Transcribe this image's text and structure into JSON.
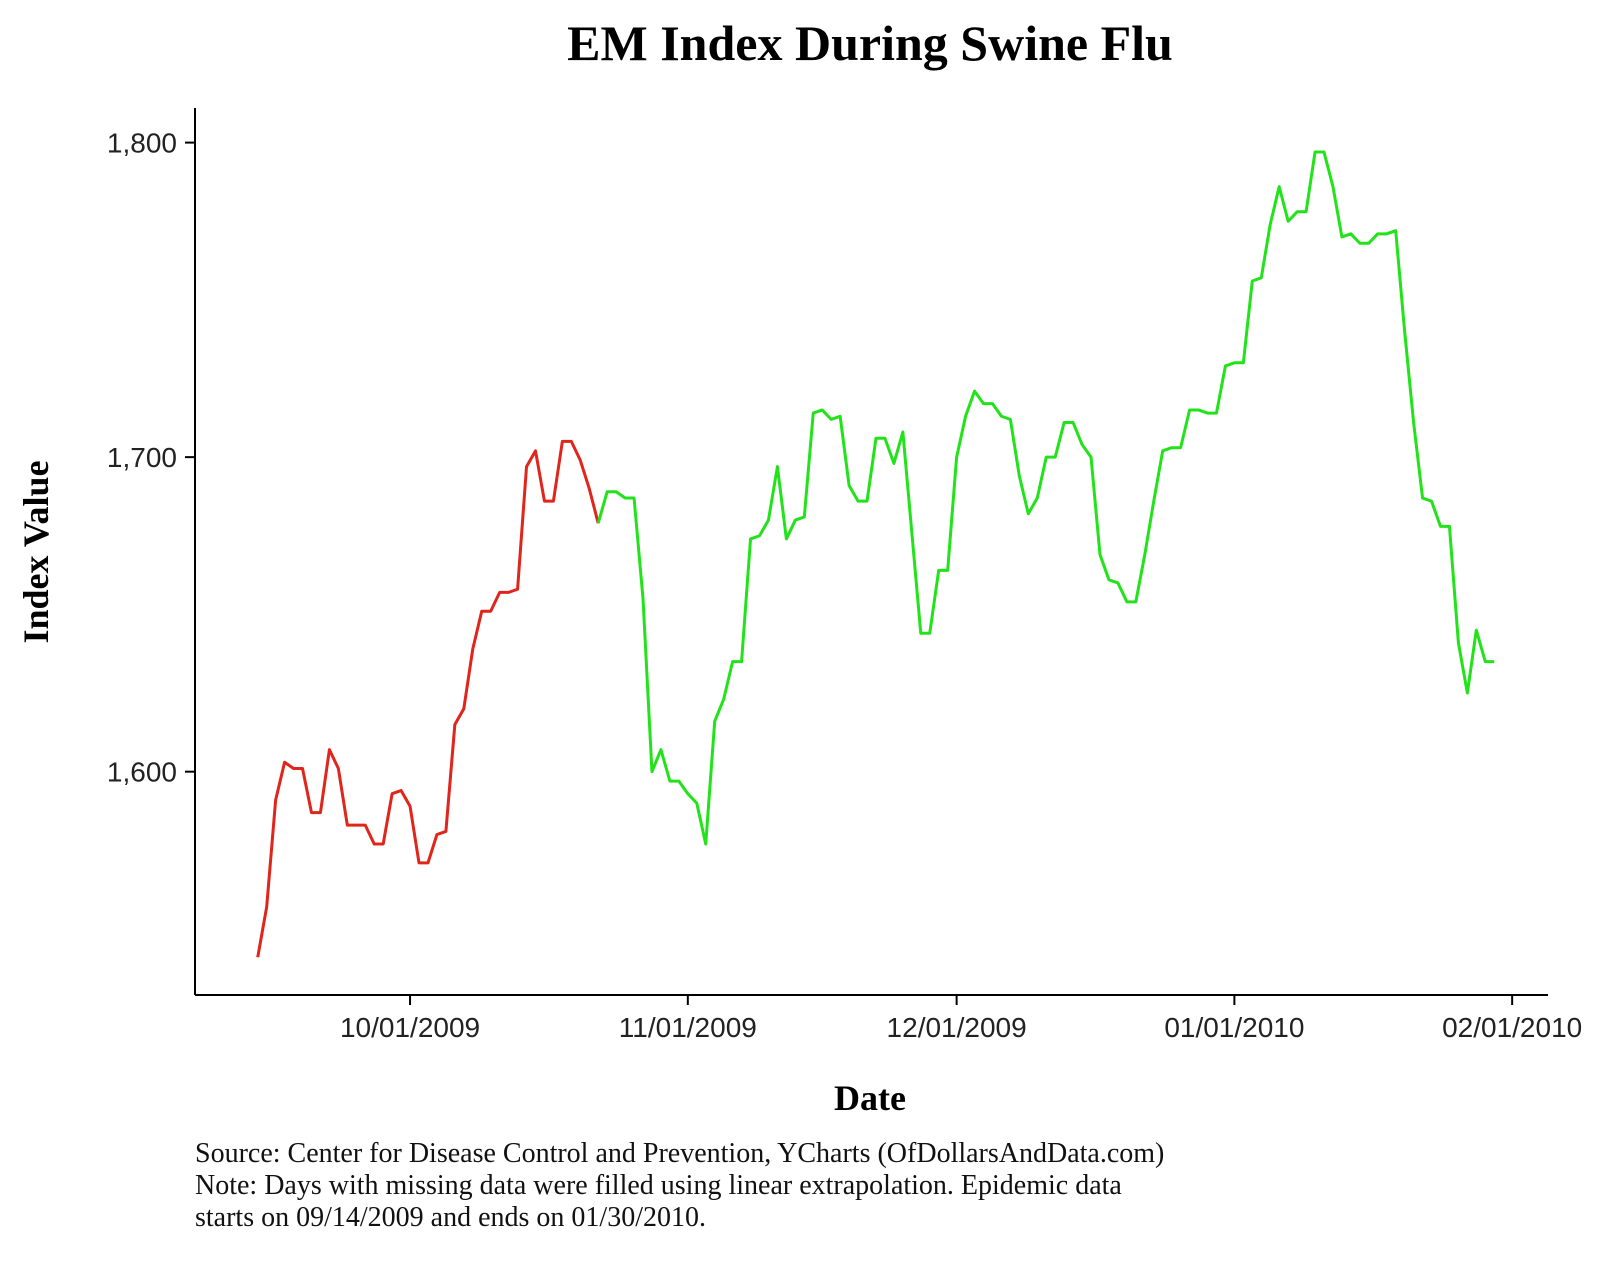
{
  "chart_data": {
    "type": "line",
    "title": "EM Index During Swine Flu",
    "x_label": "Date",
    "y_label": "Index Value",
    "caption": [
      "Source: Center for Disease Control and Prevention, YCharts (OfDollarsAndData.com)",
      "Note: Days with missing data were filled using linear extrapolation. Epidemic data",
      "starts on 09/14/2009 and ends on 01/30/2010."
    ],
    "xlim": [
      "09/07/2009",
      "02/05/2010"
    ],
    "xticks": [
      "10/01/2009",
      "11/01/2009",
      "12/01/2009",
      "01/01/2010",
      "02/01/2010"
    ],
    "ylim": [
      1529,
      1811
    ],
    "yticks": [
      {
        "value": 1600,
        "label": "1,600"
      },
      {
        "value": 1700,
        "label": "1,700"
      },
      {
        "value": 1800,
        "label": "1,800"
      }
    ],
    "grid": false,
    "series": [
      {
        "color": "#e0251b",
        "x": [
          "09/14/2009",
          "09/15/2009",
          "09/16/2009",
          "09/17/2009",
          "09/18/2009",
          "09/19/2009",
          "09/20/2009",
          "09/21/2009",
          "09/22/2009",
          "09/23/2009",
          "09/24/2009",
          "09/25/2009",
          "09/26/2009",
          "09/27/2009",
          "09/28/2009",
          "09/29/2009",
          "09/30/2009",
          "10/01/2009",
          "10/02/2009",
          "10/03/2009",
          "10/04/2009",
          "10/05/2009",
          "10/06/2009",
          "10/07/2009",
          "10/08/2009",
          "10/09/2009",
          "10/10/2009",
          "10/11/2009",
          "10/12/2009",
          "10/13/2009",
          "10/14/2009",
          "10/15/2009",
          "10/16/2009",
          "10/17/2009",
          "10/18/2009",
          "10/19/2009",
          "10/20/2009",
          "10/21/2009",
          "10/22/2009"
        ],
        "values": [
          1541,
          1557,
          1591,
          1603,
          1601,
          1601,
          1587,
          1587,
          1607,
          1601,
          1583,
          1583,
          1583,
          1577,
          1577,
          1593,
          1594,
          1589,
          1571,
          1571,
          1580,
          1581,
          1615,
          1620,
          1639,
          1651,
          1651,
          1657,
          1657,
          1658,
          1697,
          1702,
          1686,
          1686,
          1705,
          1705,
          1699,
          1690,
          1679
        ]
      },
      {
        "color": "#22e31a",
        "x": [
          "10/22/2009",
          "10/23/2009",
          "10/24/2009",
          "10/25/2009",
          "10/26/2009",
          "10/27/2009",
          "10/28/2009",
          "10/29/2009",
          "10/30/2009",
          "10/31/2009",
          "11/01/2009",
          "11/02/2009",
          "11/03/2009",
          "11/04/2009",
          "11/05/2009",
          "11/06/2009",
          "11/07/2009",
          "11/08/2009",
          "11/09/2009",
          "11/10/2009",
          "11/11/2009",
          "11/12/2009",
          "11/13/2009",
          "11/14/2009",
          "11/15/2009",
          "11/16/2009",
          "11/17/2009",
          "11/18/2009",
          "11/19/2009",
          "11/20/2009",
          "11/21/2009",
          "11/22/2009",
          "11/23/2009",
          "11/24/2009",
          "11/25/2009",
          "11/26/2009",
          "11/27/2009",
          "11/28/2009",
          "11/29/2009",
          "11/30/2009",
          "12/01/2009",
          "12/02/2009",
          "12/03/2009",
          "12/04/2009",
          "12/05/2009",
          "12/06/2009",
          "12/07/2009",
          "12/08/2009",
          "12/09/2009",
          "12/10/2009",
          "12/11/2009",
          "12/12/2009",
          "12/13/2009",
          "12/14/2009",
          "12/15/2009",
          "12/16/2009",
          "12/17/2009",
          "12/18/2009",
          "12/19/2009",
          "12/20/2009",
          "12/21/2009",
          "12/22/2009",
          "12/23/2009",
          "12/24/2009",
          "12/25/2009",
          "12/26/2009",
          "12/27/2009",
          "12/28/2009",
          "12/29/2009",
          "12/30/2009",
          "12/31/2009",
          "01/01/2010",
          "01/02/2010",
          "01/03/2010",
          "01/04/2010",
          "01/05/2010",
          "01/06/2010",
          "01/07/2010",
          "01/08/2010",
          "01/09/2010",
          "01/10/2010",
          "01/11/2010",
          "01/12/2010",
          "01/13/2010",
          "01/14/2010",
          "01/15/2010",
          "01/16/2010",
          "01/17/2010",
          "01/18/2010",
          "01/19/2010",
          "01/20/2010",
          "01/21/2010",
          "01/22/2010",
          "01/23/2010",
          "01/24/2010",
          "01/25/2010",
          "01/26/2010",
          "01/27/2010",
          "01/28/2010",
          "01/29/2010",
          "01/30/2010"
        ],
        "values": [
          1679,
          1689,
          1689,
          1687,
          1687,
          1655,
          1600,
          1607,
          1597,
          1597,
          1593,
          1590,
          1577,
          1616,
          1623,
          1635,
          1635,
          1674,
          1675,
          1680,
          1697,
          1674,
          1680,
          1681,
          1714,
          1715,
          1712,
          1713,
          1691,
          1686,
          1686,
          1706,
          1706,
          1698,
          1708,
          1676,
          1644,
          1644,
          1664,
          1664,
          1700,
          1713,
          1721,
          1717,
          1717,
          1713,
          1712,
          1694,
          1682,
          1687,
          1700,
          1700,
          1711,
          1711,
          1704,
          1700,
          1669,
          1661,
          1660,
          1654,
          1654,
          1669,
          1686,
          1702,
          1703,
          1703,
          1715,
          1715,
          1714,
          1714,
          1729,
          1730,
          1730,
          1756,
          1757,
          1774,
          1786,
          1775,
          1778,
          1778,
          1797,
          1797,
          1786,
          1770,
          1771,
          1768,
          1768,
          1771,
          1771,
          1772,
          1740,
          1711,
          1687,
          1686,
          1678,
          1678,
          1641,
          1625,
          1645,
          1635,
          1635
        ]
      }
    ]
  }
}
